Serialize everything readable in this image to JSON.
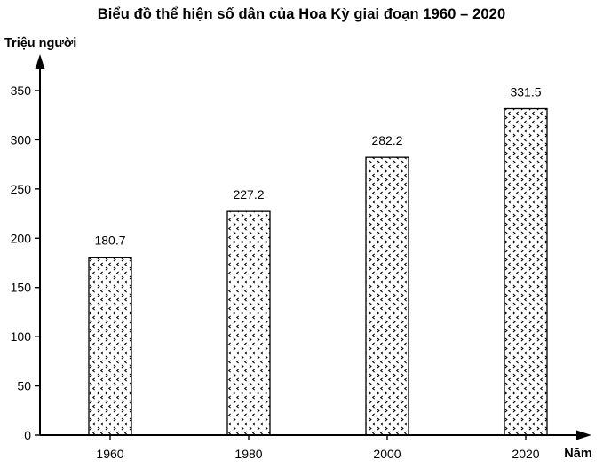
{
  "chart_data": {
    "type": "bar",
    "title": "Biểu đồ thể hiện số dân của Hoa Kỳ giai đoạn 1960 – 2020",
    "ylabel": "Triệu người",
    "xlabel": "Năm",
    "categories": [
      "1960",
      "1980",
      "2000",
      "2020"
    ],
    "values": [
      180.7,
      227.2,
      282.2,
      331.5
    ],
    "data_labels": [
      "180.7",
      "227.2",
      "282.2",
      "331.5"
    ],
    "yticks": [
      0,
      50,
      100,
      150,
      200,
      250,
      300,
      350
    ],
    "ylim": [
      0,
      370
    ],
    "grid": false,
    "legend": false,
    "bar_fill": "dotted-pattern",
    "stroke_color": "#000000",
    "background_color": "#ffffff"
  }
}
